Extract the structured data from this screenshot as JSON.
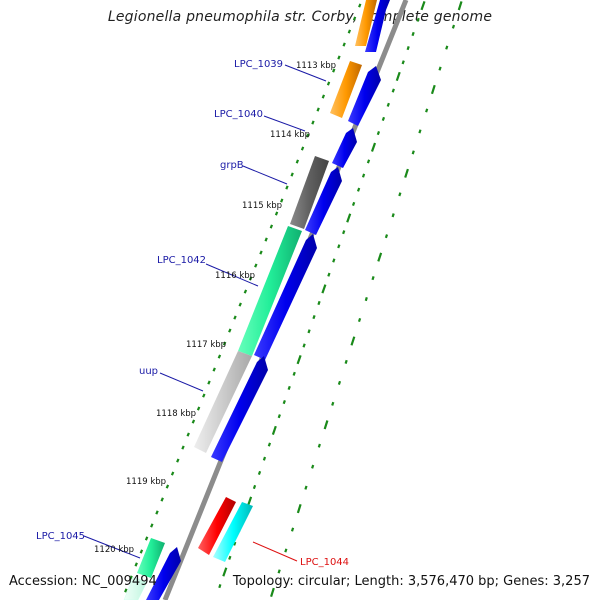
{
  "title": "Legionella pneumophila str. Corby, complete genome",
  "footer": {
    "accession": "Accession: NC_009494",
    "topology": "Topology: circular; Length: 3,576,470 bp; Genes: 3,257"
  },
  "colors": {
    "forward_cds": "#0000ee",
    "backbone": "#888888",
    "label": "#1a1aa6",
    "tick": "#1a8a1a",
    "gene_red": "#ff0000",
    "gene_cyan": "#00ffff",
    "gene_orange": "#ff9900",
    "gene_green": "#22ee99",
    "gene_gray": "#666666",
    "gene_lightgray": "#cccccc"
  },
  "kbp_ticks": [
    "1113 kbp",
    "1114 kbp",
    "1115 kbp",
    "1116 kbp",
    "1117 kbp",
    "1118 kbp",
    "1119 kbp",
    "1120 kbp"
  ],
  "gene_labels": [
    {
      "text": "LPC_1039",
      "color": "blue"
    },
    {
      "text": "LPC_1040",
      "color": "blue"
    },
    {
      "text": "grpB",
      "color": "blue"
    },
    {
      "text": "LPC_1042",
      "color": "blue"
    },
    {
      "text": "uup",
      "color": "blue"
    },
    {
      "text": "LPC_1045",
      "color": "blue"
    },
    {
      "text": "LPC_1044",
      "color": "red"
    }
  ]
}
